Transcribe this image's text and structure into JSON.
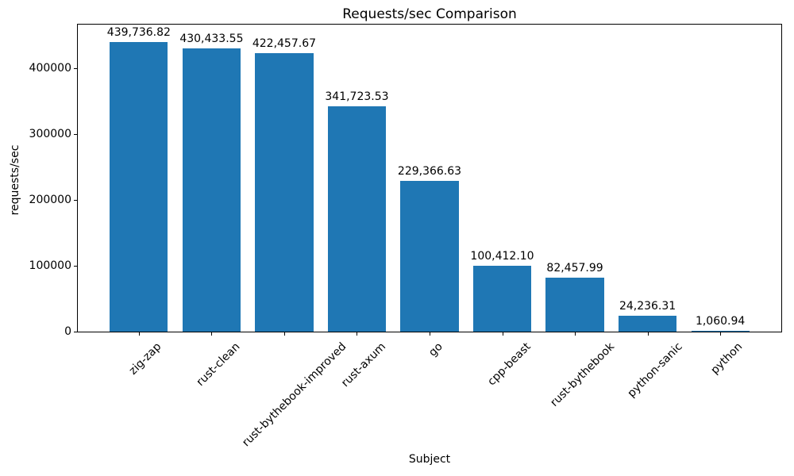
{
  "chart_data": {
    "type": "bar",
    "title": "Requests/sec Comparison",
    "xlabel": "Subject",
    "ylabel": "requests/sec",
    "categories": [
      "zig-zap",
      "rust-clean",
      "rust-bythebook-improved",
      "rust-axum",
      "go",
      "cpp-beast",
      "rust-bythebook",
      "python-sanic",
      "python"
    ],
    "values": [
      439736.82,
      430433.55,
      422457.67,
      341723.53,
      229366.63,
      100412.1,
      82457.99,
      24236.31,
      1060.94
    ],
    "value_labels": [
      "439,736.82",
      "430,433.55",
      "422,457.67",
      "341,723.53",
      "229,366.63",
      "100,412.10",
      "82,457.99",
      "24,236.31",
      "1,060.94"
    ],
    "yticks": [
      0,
      100000,
      200000,
      300000,
      400000
    ],
    "ytick_labels": [
      "0",
      "100000",
      "200000",
      "300000",
      "400000"
    ],
    "ylim": [
      0,
      466265
    ],
    "bar_color": "#1f77b4",
    "text_color": "#000000",
    "grid": false,
    "legend": null
  }
}
